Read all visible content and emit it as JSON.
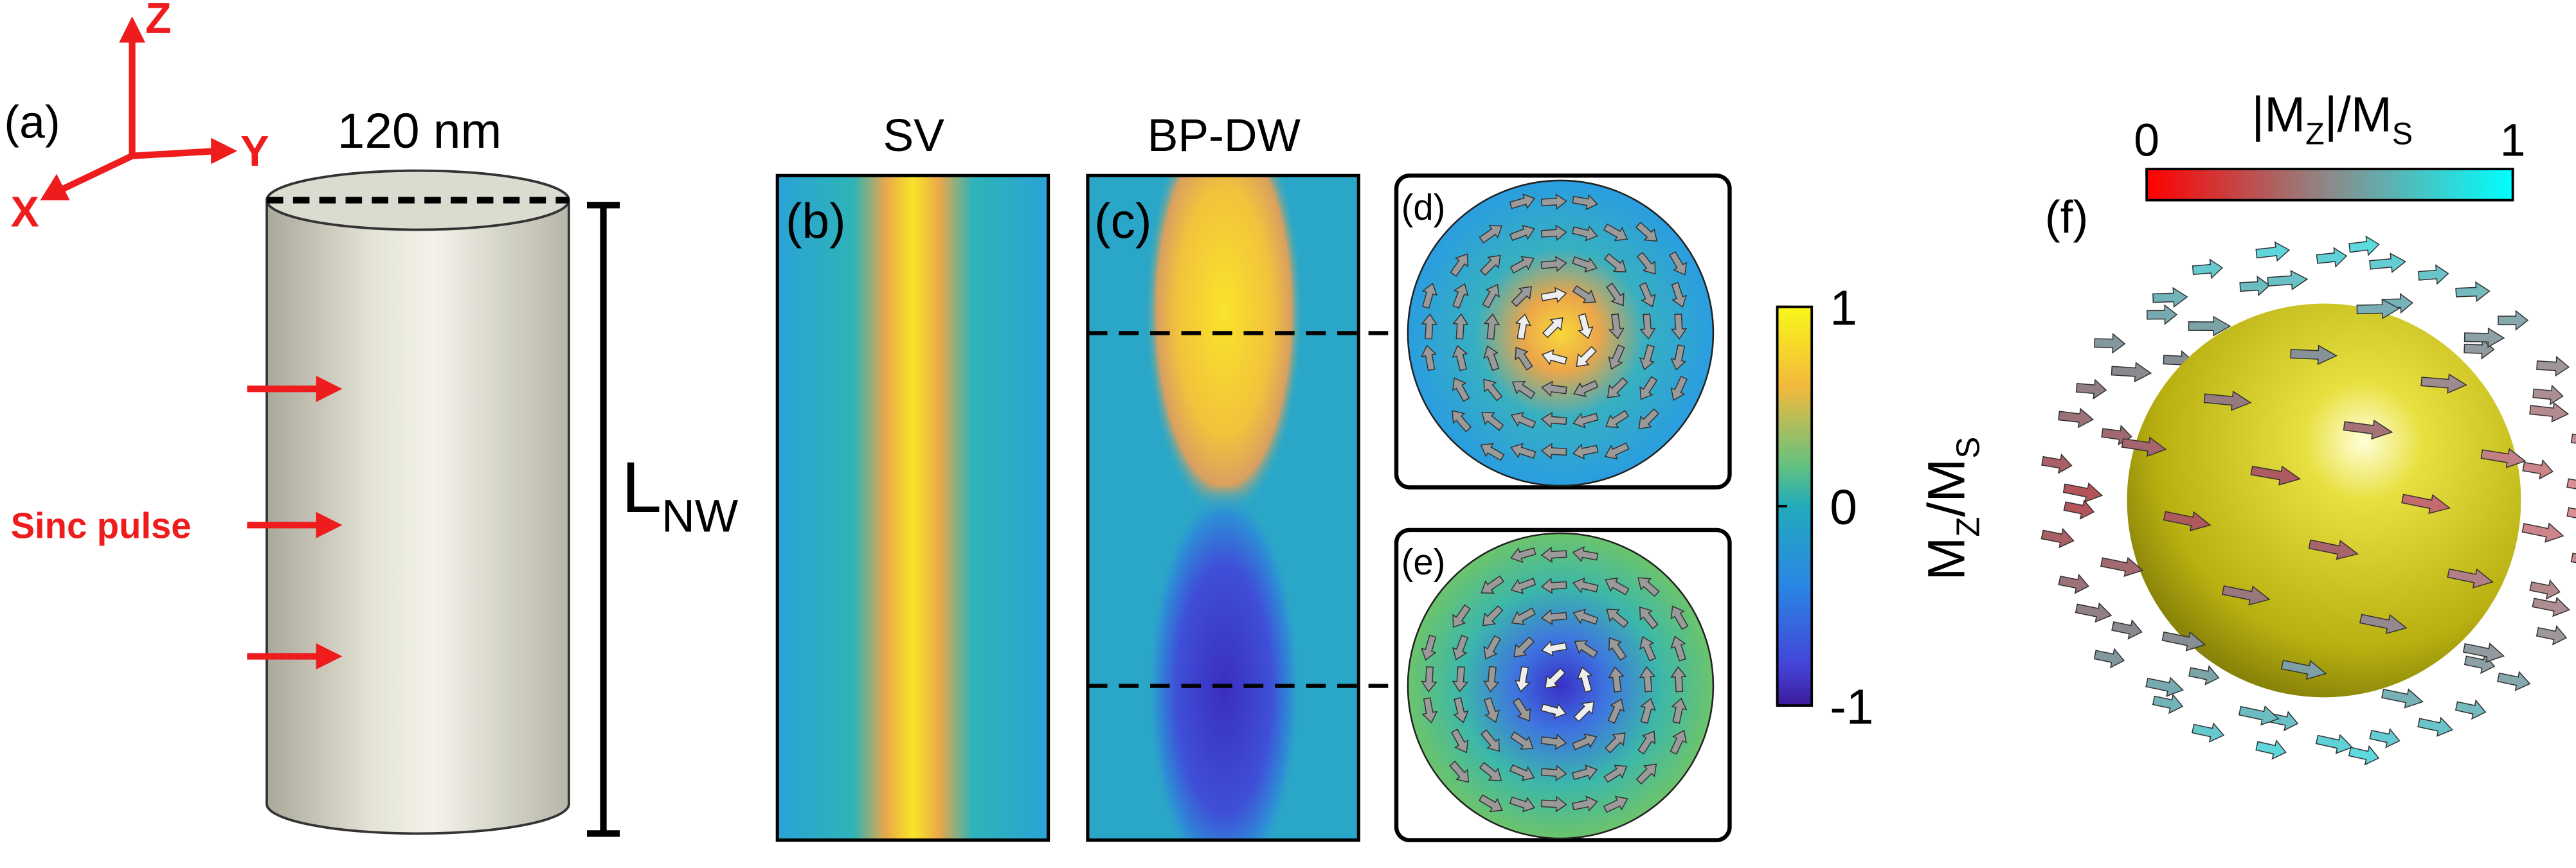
{
  "panel_a": {
    "label": "(a)",
    "axes": {
      "z": "Z",
      "y": "Y",
      "x": "X"
    },
    "diameter": "120 nm",
    "length": {
      "main": "L",
      "sub": "NW"
    },
    "pulse": "Sinc pulse"
  },
  "panel_b": {
    "label": "(b)",
    "title": "SV"
  },
  "panel_c": {
    "label": "(c)",
    "title": "BP-DW"
  },
  "panel_d": {
    "label": "(d)"
  },
  "panel_e": {
    "label": "(e)"
  },
  "colorbar": {
    "label": {
      "m1": "M",
      "s1": "Z",
      "m2": "/M",
      "s2": "S"
    },
    "lim": [
      -1,
      1
    ],
    "ticks": [
      1,
      0,
      -1
    ]
  },
  "panel_f": {
    "label": "(f)",
    "colorbar": {
      "label": {
        "m1": "|M",
        "s1": "Z",
        "m2": "|/M",
        "s2": "S"
      },
      "lim": [
        0,
        1
      ],
      "ticks": [
        0,
        1
      ]
    }
  }
}
